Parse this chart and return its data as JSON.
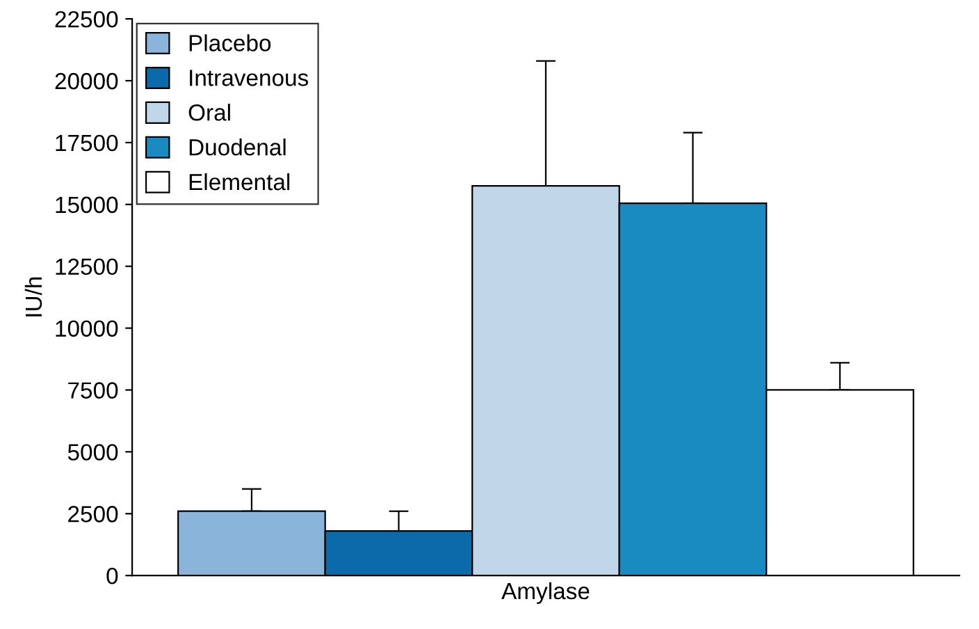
{
  "chart_data": {
    "type": "bar",
    "ylabel": "IU/h",
    "categories": [
      "Amylase"
    ],
    "series": [
      {
        "name": "Placebo",
        "color": "#8ab4d9",
        "values": [
          2600
        ],
        "errors": [
          [
            2600,
            3500
          ]
        ]
      },
      {
        "name": "Intravenous",
        "color": "#0b6aa9",
        "values": [
          1800
        ],
        "errors": [
          [
            1800,
            2600
          ]
        ]
      },
      {
        "name": "Oral",
        "color": "#c0d7ea",
        "values": [
          15750
        ],
        "errors": [
          [
            15750,
            20800
          ]
        ]
      },
      {
        "name": "Duodenal",
        "color": "#1a8bc1",
        "values": [
          15050
        ],
        "errors": [
          [
            15050,
            17900
          ]
        ]
      },
      {
        "name": "Elemental",
        "color": "#ffffff",
        "values": [
          7500
        ],
        "errors": [
          [
            7500,
            8600
          ]
        ]
      }
    ],
    "ylim": [
      0,
      22500
    ],
    "yticks": [
      0,
      2500,
      5000,
      7500,
      10000,
      12500,
      15000,
      17500,
      20000,
      22500
    ],
    "grid": false,
    "legend": "top left"
  }
}
